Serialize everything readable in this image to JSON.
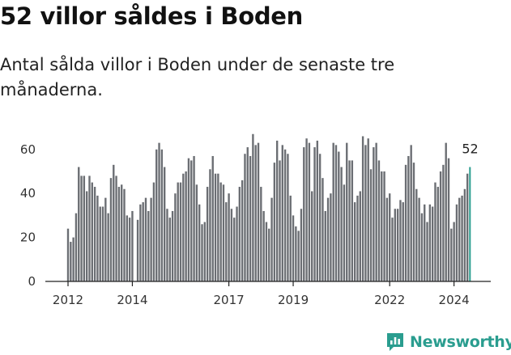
{
  "header": {
    "title": "52 villor såldes i Boden",
    "subtitle": "Antal sålda villor i Boden under de senaste tre månaderna."
  },
  "branding": {
    "logo_text": "Newsworthy",
    "logo_icon": "newsworthy-chart-icon",
    "color": "#2a9d8f"
  },
  "chart_data": {
    "type": "bar",
    "title": "52 villor såldes i Boden",
    "xlabel": "",
    "ylabel": "",
    "ylim": [
      0,
      70
    ],
    "yticks": [
      0,
      20,
      40,
      60
    ],
    "yticklabels": [
      "0",
      "20",
      "40",
      "60"
    ],
    "grid": false,
    "x_start": "2012-01",
    "x_end": "2024-07",
    "x_step": "month",
    "xticks": [
      {
        "label": "2012",
        "index": 0
      },
      {
        "label": "2014",
        "index": 24
      },
      {
        "label": "2017",
        "index": 60
      },
      {
        "label": "2019",
        "index": 84
      },
      {
        "label": "2022",
        "index": 120
      },
      {
        "label": "2024",
        "index": 144
      }
    ],
    "values": [
      24,
      18,
      20,
      31,
      52,
      48,
      48,
      41,
      48,
      45,
      43,
      39,
      34,
      34,
      38,
      31,
      47,
      53,
      48,
      43,
      44,
      42,
      30,
      29,
      32,
      0,
      28,
      35,
      36,
      38,
      32,
      38,
      45,
      60,
      63,
      60,
      52,
      33,
      29,
      32,
      40,
      45,
      45,
      49,
      50,
      56,
      55,
      57,
      44,
      35,
      26,
      27,
      43,
      51,
      57,
      49,
      49,
      45,
      44,
      36,
      40,
      33,
      29,
      34,
      43,
      46,
      58,
      61,
      57,
      67,
      62,
      63,
      43,
      32,
      27,
      24,
      38,
      54,
      64,
      55,
      62,
      60,
      58,
      39,
      30,
      25,
      23,
      33,
      61,
      65,
      63,
      41,
      61,
      64,
      58,
      47,
      32,
      38,
      40,
      63,
      62,
      59,
      52,
      44,
      63,
      55,
      55,
      36,
      39,
      41,
      66,
      62,
      65,
      51,
      61,
      63,
      55,
      50,
      50,
      38,
      40,
      29,
      33,
      33,
      37,
      36,
      53,
      57,
      62,
      54,
      42,
      38,
      31,
      35,
      27,
      35,
      34,
      45,
      43,
      50,
      53,
      63,
      56,
      24,
      27,
      35,
      38,
      39,
      42,
      49,
      52
    ],
    "highlight": {
      "index": 150,
      "value": 52,
      "label": "52",
      "color": "#2a9d8f"
    },
    "bar_color": "#6b6e73"
  }
}
